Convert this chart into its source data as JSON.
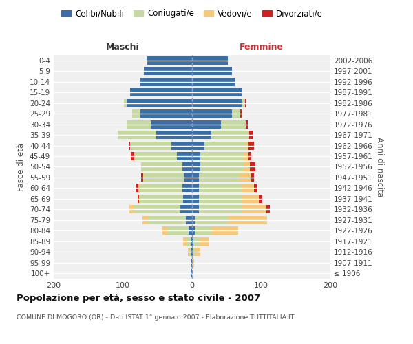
{
  "age_groups": [
    "100+",
    "95-99",
    "90-94",
    "85-89",
    "80-84",
    "75-79",
    "70-74",
    "65-69",
    "60-64",
    "55-59",
    "50-54",
    "45-49",
    "40-44",
    "35-39",
    "30-34",
    "25-29",
    "20-24",
    "15-19",
    "10-14",
    "5-9",
    "0-4"
  ],
  "birth_years": [
    "≤ 1906",
    "1907-1911",
    "1912-1916",
    "1917-1921",
    "1922-1926",
    "1927-1931",
    "1932-1936",
    "1937-1941",
    "1942-1946",
    "1947-1951",
    "1952-1956",
    "1957-1961",
    "1962-1966",
    "1967-1971",
    "1972-1976",
    "1977-1981",
    "1982-1986",
    "1987-1991",
    "1992-1996",
    "1997-2001",
    "2002-2006"
  ],
  "maschi": {
    "celibi": [
      1,
      1,
      1,
      2,
      5,
      9,
      18,
      13,
      14,
      12,
      14,
      22,
      30,
      52,
      60,
      75,
      95,
      90,
      75,
      70,
      65
    ],
    "coniugati": [
      0,
      0,
      2,
      5,
      30,
      55,
      65,
      62,
      62,
      58,
      60,
      62,
      60,
      55,
      35,
      12,
      4,
      0,
      0,
      0,
      0
    ],
    "vedovi": [
      0,
      1,
      3,
      6,
      8,
      8,
      8,
      2,
      2,
      1,
      0,
      0,
      0,
      0,
      0,
      0,
      0,
      0,
      0,
      0,
      0
    ],
    "divorziati": [
      0,
      0,
      0,
      0,
      0,
      0,
      0,
      2,
      3,
      3,
      0,
      5,
      2,
      0,
      0,
      0,
      0,
      0,
      0,
      0,
      0
    ]
  },
  "femmine": {
    "nubili": [
      0,
      0,
      1,
      2,
      4,
      5,
      10,
      10,
      10,
      10,
      12,
      12,
      18,
      28,
      42,
      58,
      72,
      72,
      62,
      58,
      52
    ],
    "coniugate": [
      0,
      1,
      3,
      8,
      25,
      48,
      62,
      62,
      62,
      58,
      62,
      62,
      60,
      55,
      36,
      12,
      5,
      0,
      0,
      0,
      0
    ],
    "vedove": [
      0,
      2,
      8,
      15,
      38,
      55,
      35,
      25,
      18,
      18,
      10,
      8,
      4,
      0,
      0,
      0,
      0,
      0,
      0,
      0,
      0
    ],
    "divorziate": [
      0,
      0,
      0,
      0,
      0,
      0,
      5,
      4,
      4,
      4,
      8,
      4,
      8,
      5,
      3,
      2,
      1,
      0,
      0,
      0,
      0
    ]
  },
  "colors": {
    "celibi_nubili": "#3a6ea5",
    "coniugati": "#c5d9a0",
    "vedovi": "#f5c97a",
    "divorziati": "#cc2222"
  },
  "xlim": 200,
  "title": "Popolazione per età, sesso e stato civile - 2007",
  "subtitle": "COMUNE DI MOGORO (OR) - Dati ISTAT 1° gennaio 2007 - Elaborazione TUTTITALIA.IT",
  "ylabel_left": "Fasce di età",
  "ylabel_right": "Anni di nascita",
  "xlabel_left": "Maschi",
  "xlabel_right": "Femmine",
  "legend_labels": [
    "Celibi/Nubili",
    "Coniugati/e",
    "Vedovi/e",
    "Divorziati/e"
  ],
  "bg_color": "#ffffff",
  "plot_bg_color": "#f0f0f0"
}
